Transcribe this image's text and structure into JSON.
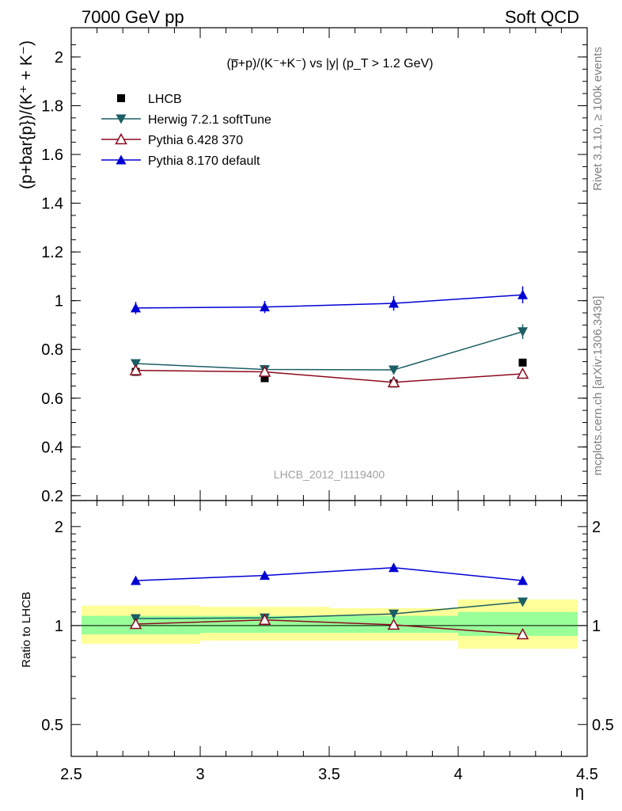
{
  "header": {
    "left": "7000 GeV pp",
    "right": "Soft QCD"
  },
  "side_text": {
    "rivet": "Rivet 3.1.10, ≥ 100k events",
    "mcplots": "mcplots.cern.ch [arXiv:1306.3436]"
  },
  "colors": {
    "lhcb": "#000000",
    "herwig": "#1b5e63",
    "pythia6": "#8b0a1e",
    "pythia8": "#0000d4",
    "band_inner": "#99ff99",
    "band_outer": "#ffff99"
  },
  "chart_data": [
    {
      "type": "scatter",
      "panel": "main",
      "title": "(p̅+p)/(K⁻+K⁻) vs |y| (p_T > 1.2 GeV)",
      "ylabel": "(p+bar{p})/(K⁺ + K⁻)",
      "xlabel": "",
      "watermark": "LHCB_2012_I1119400",
      "xlim": [
        2.5,
        4.5
      ],
      "ylim": [
        0.18,
        2.12
      ],
      "yticks": [
        0.2,
        0.4,
        0.6,
        0.8,
        1,
        1.2,
        1.4,
        1.6,
        1.8,
        2
      ],
      "ytick_labels": [
        "0.2",
        "0.4",
        "0.6",
        "0.8",
        "1",
        "1.2",
        "1.4",
        "1.6",
        "1.8",
        "2"
      ],
      "x": [
        2.75,
        3.25,
        3.75,
        4.25
      ],
      "series": [
        {
          "name": "LHCB",
          "key": "lhcb",
          "marker": "square",
          "values": [
            0.708,
            0.682,
            0.66,
            0.746
          ],
          "errors": [
            0.012,
            0.01,
            0.012,
            0.01
          ]
        },
        {
          "name": "Herwig 7.2.1 softTune",
          "key": "herwig",
          "marker": "triangle-down",
          "values": [
            0.742,
            0.718,
            0.716,
            0.873
          ],
          "errors": [
            0.015,
            0.015,
            0.018,
            0.03
          ]
        },
        {
          "name": "Pythia 6.428 370",
          "key": "pythia6",
          "marker": "triangle-up-open",
          "values": [
            0.714,
            0.708,
            0.665,
            0.7
          ],
          "errors": [
            0.014,
            0.015,
            0.015,
            0.02
          ]
        },
        {
          "name": "Pythia 8.170 default",
          "key": "pythia8",
          "marker": "triangle-up",
          "values": [
            0.97,
            0.974,
            0.989,
            1.024
          ],
          "errors": [
            0.025,
            0.025,
            0.03,
            0.035
          ]
        }
      ]
    },
    {
      "type": "scatter",
      "panel": "ratio",
      "ylabel": "Ratio to LHCB",
      "xlabel": "η",
      "xlim": [
        2.5,
        4.5
      ],
      "yscale": "log",
      "ylim": [
        0.4,
        2.4
      ],
      "yticks": [
        0.5,
        1,
        2
      ],
      "ytick_labels": [
        "0.5",
        "1",
        "2"
      ],
      "xticks": [
        2.5,
        3,
        3.5,
        4,
        4.5
      ],
      "xtick_labels": [
        "2.5",
        "3",
        "3.5",
        "4",
        "4.5"
      ],
      "x": [
        2.75,
        3.25,
        3.75,
        4.25
      ],
      "bands": {
        "edges": [
          [
            2.5,
            3.0
          ],
          [
            3.0,
            3.5
          ],
          [
            3.5,
            4.0
          ],
          [
            4.0,
            4.5
          ]
        ],
        "inner": [
          [
            0.94,
            1.07
          ],
          [
            0.95,
            1.07
          ],
          [
            0.95,
            1.07
          ],
          [
            0.93,
            1.1
          ]
        ],
        "outer": [
          [
            0.88,
            1.15
          ],
          [
            0.9,
            1.14
          ],
          [
            0.9,
            1.13
          ],
          [
            0.85,
            1.2
          ]
        ]
      },
      "series": [
        {
          "name": "Herwig 7.2.1 softTune",
          "key": "herwig",
          "marker": "triangle-down",
          "values": [
            1.05,
            1.055,
            1.085,
            1.18
          ],
          "errors": [
            0.02,
            0.02,
            0.02,
            0.03
          ]
        },
        {
          "name": "Pythia 6.428 370",
          "key": "pythia6",
          "marker": "triangle-up-open",
          "values": [
            1.01,
            1.04,
            1.005,
            0.94
          ],
          "errors": [
            0.02,
            0.02,
            0.02,
            0.02
          ]
        },
        {
          "name": "Pythia 8.170 default",
          "key": "pythia8",
          "marker": "triangle-up",
          "values": [
            1.37,
            1.42,
            1.5,
            1.37
          ],
          "errors": [
            0.03,
            0.03,
            0.04,
            0.04
          ]
        }
      ]
    }
  ]
}
